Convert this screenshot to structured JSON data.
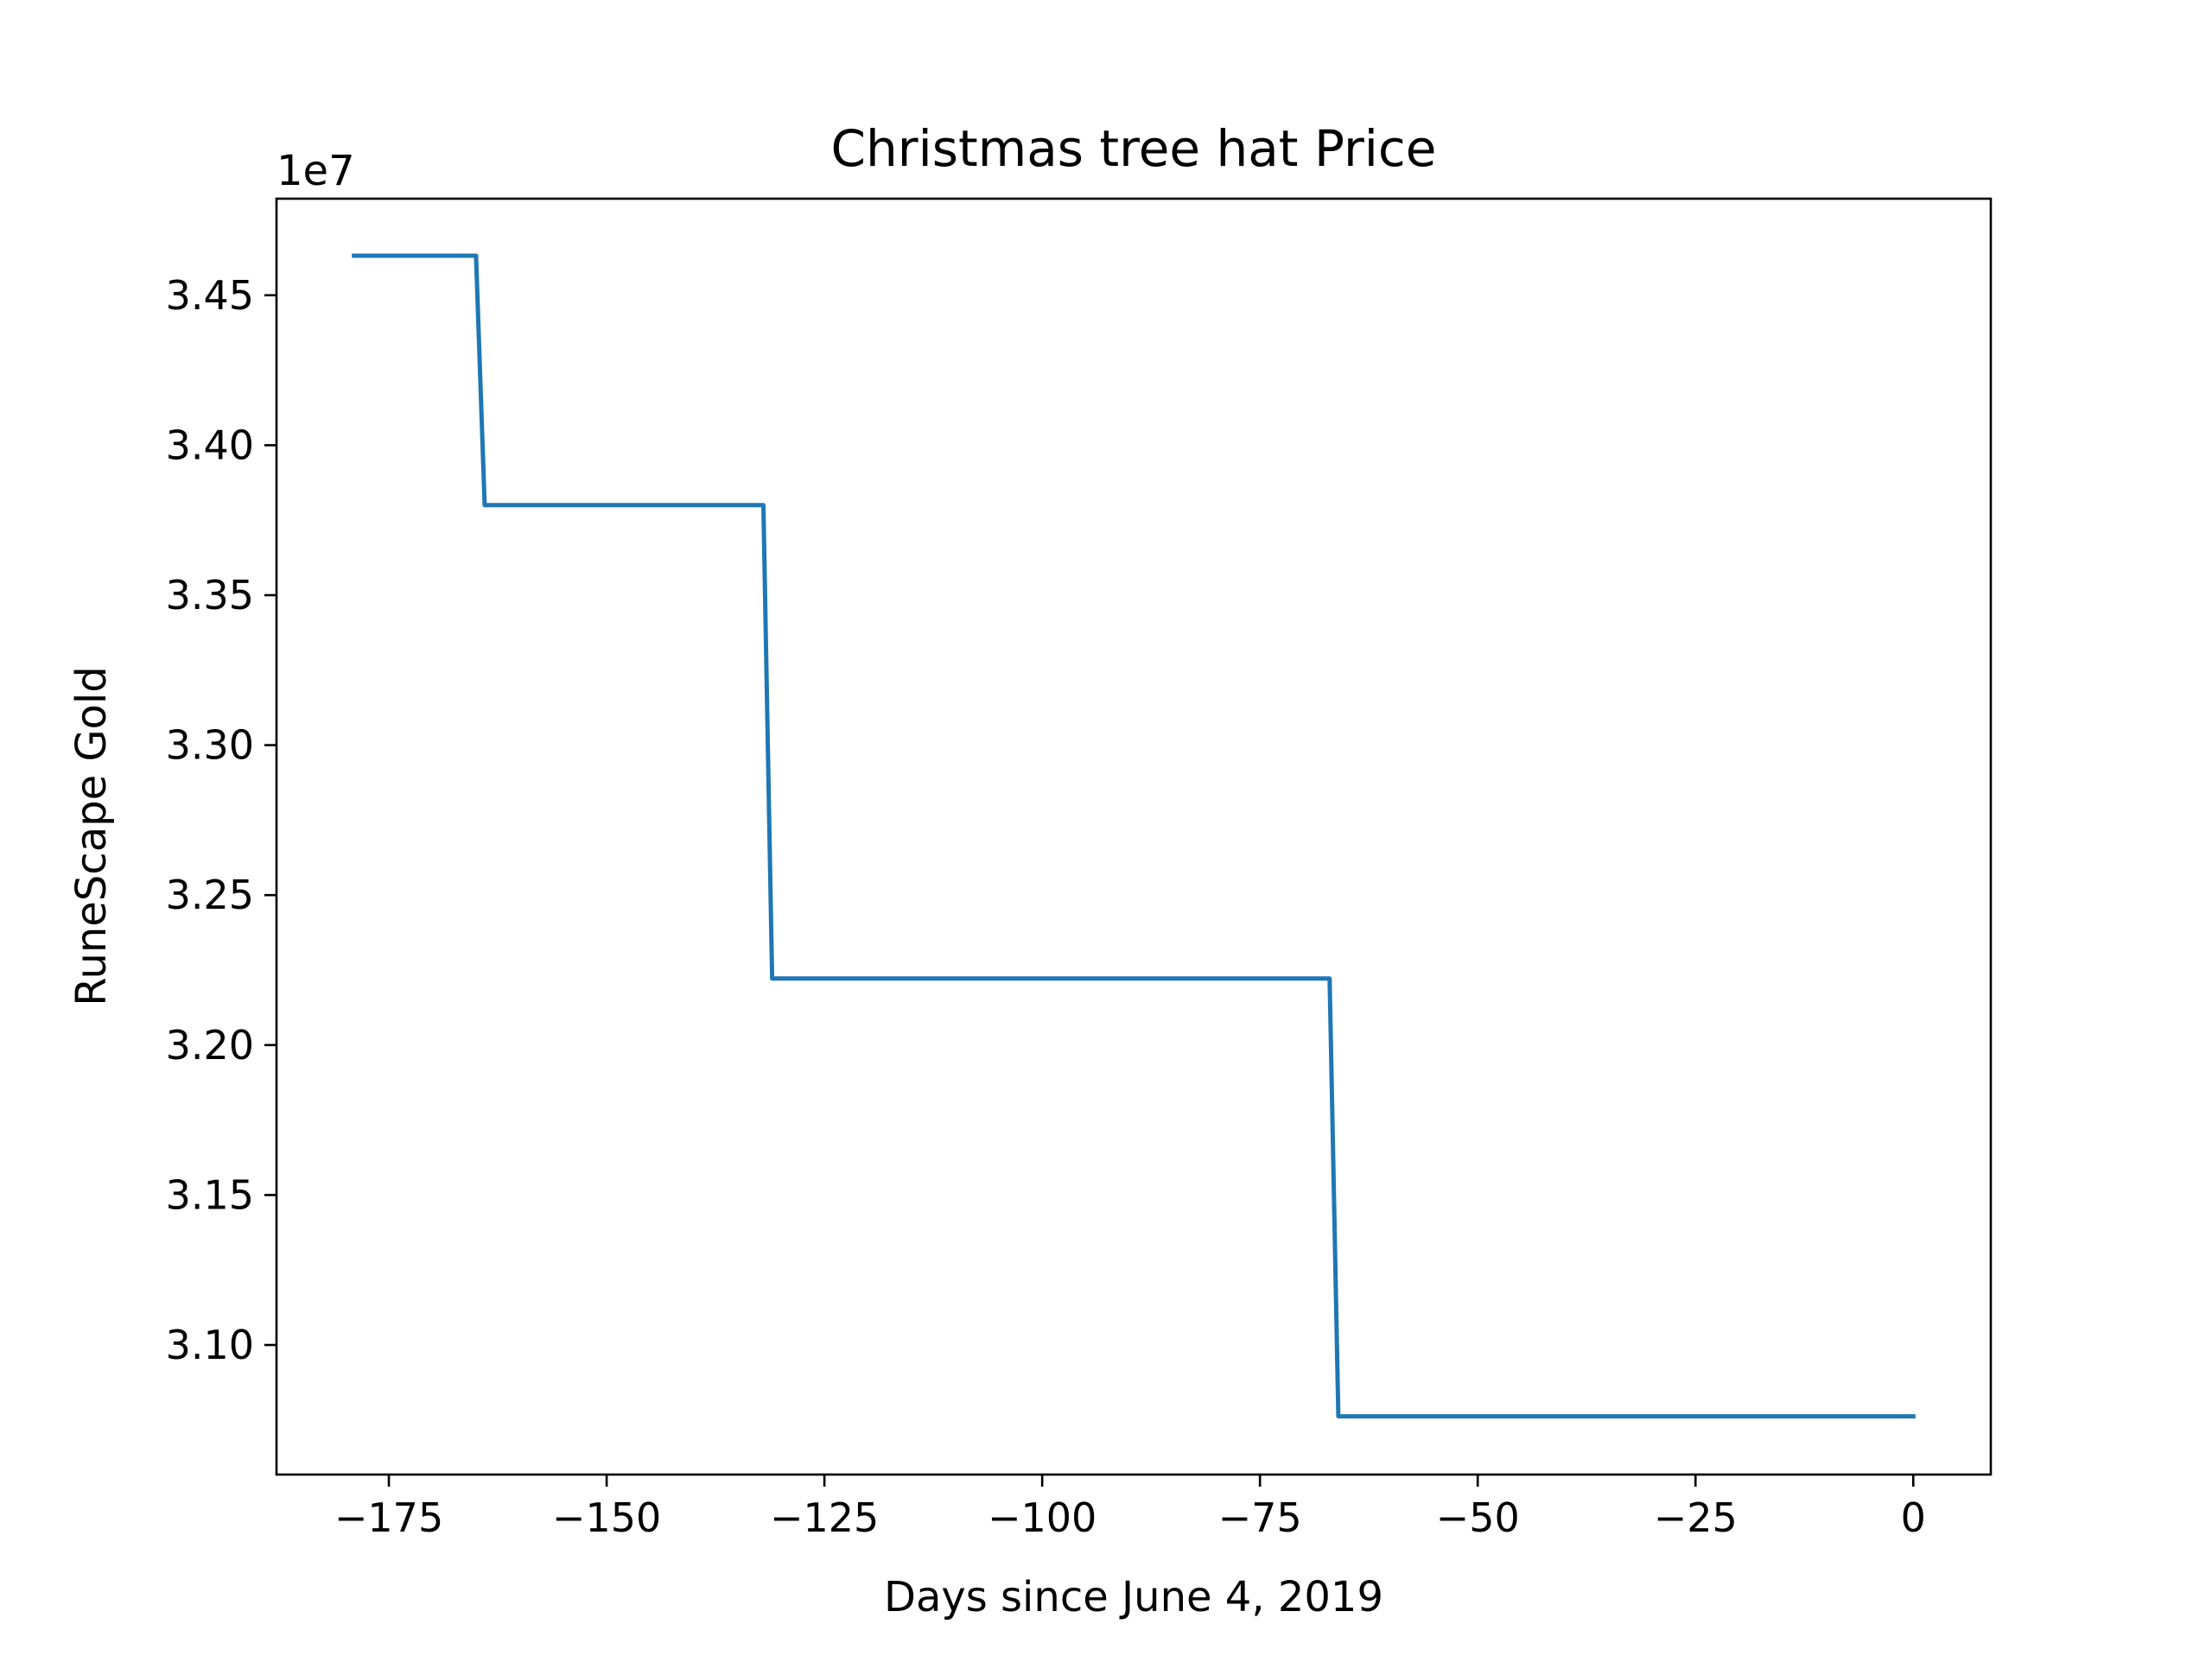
{
  "chart_data": {
    "type": "line",
    "title": "Christmas tree hat Price",
    "xlabel": "Days since June 4, 2019",
    "ylabel": "RuneScape Gold",
    "y_offset_label": "1e7",
    "xlim": [
      -187.9,
      8.9
    ],
    "ylim": [
      3.0568,
      3.4822
    ],
    "x_ticks": [
      -175,
      -150,
      -125,
      -100,
      -75,
      -50,
      -25,
      0
    ],
    "x_tick_labels": [
      "−175",
      "−150",
      "−125",
      "−100",
      "−75",
      "−50",
      "−25",
      "0"
    ],
    "y_ticks": [
      3.1,
      3.15,
      3.2,
      3.25,
      3.3,
      3.35,
      3.4,
      3.45
    ],
    "y_tick_labels": [
      "3.10",
      "3.15",
      "3.20",
      "3.25",
      "3.30",
      "3.35",
      "3.40",
      "3.45"
    ],
    "grid": false,
    "legend": false,
    "series": [
      {
        "color": "#1f77b4",
        "x": [
          -179,
          -165,
          -164,
          -132,
          -131,
          -67,
          -66,
          0
        ],
        "y": [
          3.4632,
          3.4632,
          3.38,
          3.38,
          3.2222,
          3.2222,
          3.0762,
          3.0762
        ]
      }
    ]
  }
}
